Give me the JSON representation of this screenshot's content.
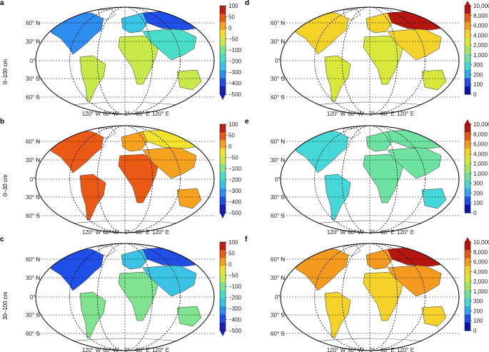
{
  "colors": {
    "diverging": [
      "#1a1fb0",
      "#1f4fe6",
      "#2f8df0",
      "#3bc3e6",
      "#49dcc6",
      "#7fe38f",
      "#c7e94a",
      "#f2e32c",
      "#f6a21e",
      "#eb5a15",
      "#c41b14"
    ],
    "sequential": [
      "#0a14a8",
      "#2050e6",
      "#2ea8f0",
      "#46d8d8",
      "#6ee2a0",
      "#a6e55c",
      "#d8e83a",
      "#f4d22a",
      "#f49a1e",
      "#e35a16",
      "#b61612"
    ]
  },
  "row_labels": [
    "0–100 cm",
    "0–30 cm",
    "30–100 cm"
  ],
  "lat_labels": [
    "60° N",
    "30° N",
    "0°",
    "30° S",
    "60° S"
  ],
  "lon_labels": [
    "120° W",
    "60° W",
    "0°",
    "60° E",
    "120° E"
  ],
  "colorbars": {
    "diverging": {
      "ticks": [
        "100",
        "50",
        "0",
        "−50",
        "−100",
        "−200",
        "−300",
        "−400",
        "−500"
      ],
      "extend": "min"
    },
    "sequential": {
      "ticks": [
        "10,000",
        "8,000",
        "6,000",
        "4,000",
        "2,000",
        "1,000",
        "300",
        "200",
        "100",
        "0"
      ],
      "extend": "max"
    }
  },
  "chart_data": [
    {
      "type": "heatmap",
      "panel": "a",
      "row": "0–100 cm",
      "scale": "diverging",
      "dominant_range": [
        -300,
        50
      ]
    },
    {
      "type": "heatmap",
      "panel": "b",
      "row": "0–30 cm",
      "scale": "diverging",
      "dominant_range": [
        -50,
        100
      ]
    },
    {
      "type": "heatmap",
      "panel": "c",
      "row": "30–100 cm",
      "scale": "diverging",
      "dominant_range": [
        -500,
        -50
      ]
    },
    {
      "type": "heatmap",
      "panel": "d",
      "row": "0–100 cm",
      "scale": "sequential",
      "dominant_range": [
        1000,
        10000
      ]
    },
    {
      "type": "heatmap",
      "panel": "e",
      "row": "0–30 cm",
      "scale": "sequential",
      "dominant_range": [
        300,
        2000
      ]
    },
    {
      "type": "heatmap",
      "panel": "f",
      "row": "30–100 cm",
      "scale": "sequential",
      "dominant_range": [
        2000,
        10000
      ]
    }
  ],
  "panels": [
    {
      "label": "a",
      "scale": "diverging",
      "row": 0,
      "col": 0,
      "fills": {
        "na": 2,
        "sa": 6,
        "eu": 3,
        "af": 6,
        "as": 4,
        "ru": 1,
        "au": 6
      }
    },
    {
      "label": "b",
      "scale": "diverging",
      "row": 1,
      "col": 0,
      "fills": {
        "na": 9,
        "sa": 9,
        "eu": 8,
        "af": 9,
        "as": 8,
        "ru": 7,
        "au": 8
      }
    },
    {
      "label": "c",
      "scale": "diverging",
      "row": 2,
      "col": 0,
      "fills": {
        "na": 1,
        "sa": 5,
        "eu": 3,
        "af": 5,
        "as": 3,
        "ru": 1,
        "au": 5
      }
    },
    {
      "label": "d",
      "scale": "sequential",
      "row": 0,
      "col": 1,
      "fills": {
        "na": 7,
        "sa": 6,
        "eu": 7,
        "af": 6,
        "as": 7,
        "ru": 10,
        "au": 6
      }
    },
    {
      "label": "e",
      "scale": "sequential",
      "row": 1,
      "col": 1,
      "fills": {
        "na": 3,
        "sa": 3,
        "eu": 4,
        "af": 4,
        "as": 4,
        "ru": 4,
        "au": 3
      }
    },
    {
      "label": "f",
      "scale": "sequential",
      "row": 2,
      "col": 1,
      "fills": {
        "na": 8,
        "sa": 7,
        "eu": 8,
        "af": 7,
        "as": 8,
        "ru": 10,
        "au": 7
      }
    }
  ]
}
